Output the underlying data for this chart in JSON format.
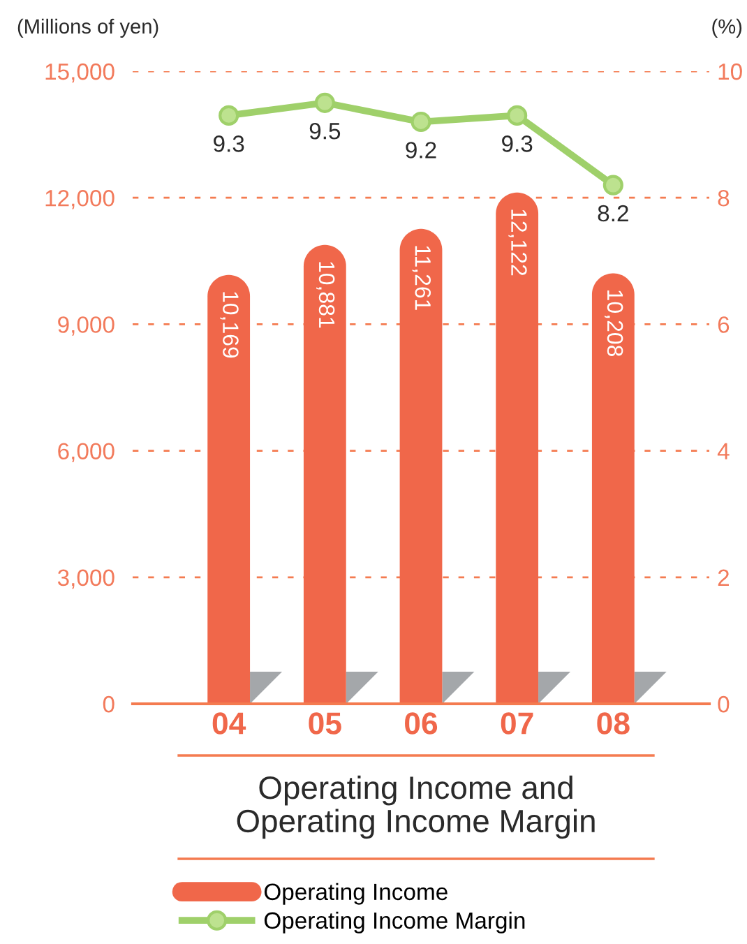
{
  "chart_data": {
    "type": "bar",
    "title": "Operating Income and\nOperating Income Margin",
    "ylabel": "(Millions of yen)",
    "y2label": "(%)",
    "categories": [
      "04",
      "05",
      "06",
      "07",
      "08"
    ],
    "series": [
      {
        "name": "Operating Income",
        "color": "#f0674a",
        "values": [
          10169,
          10881,
          11261,
          12122,
          10208
        ],
        "value_labels": [
          "10,169",
          "10,881",
          "11,261",
          "12,122",
          "10,208"
        ]
      },
      {
        "name": "Operating Income Margin",
        "type": "line",
        "axis": "y2",
        "color": "#9fd06a",
        "values": [
          9.3,
          9.5,
          9.2,
          9.3,
          8.2
        ],
        "value_labels": [
          "9.3",
          "9.5",
          "9.2",
          "9.3",
          "8.2"
        ]
      }
    ],
    "ylim": [
      0,
      15000
    ],
    "yticks": [
      0,
      {
        "value": 3000,
        "label": "3,000"
      },
      {
        "value": 6000,
        "label": "6,000"
      },
      {
        "value": 9000,
        "label": "9,000"
      },
      {
        "value": 12000,
        "label": "12,000"
      },
      {
        "value": 15000,
        "label": "15,000"
      }
    ],
    "y2lim": [
      0,
      10
    ],
    "y2ticks": [
      0,
      2,
      4,
      6,
      8,
      10
    ],
    "grid": "y",
    "legend": "bottom",
    "marker": "circle"
  }
}
